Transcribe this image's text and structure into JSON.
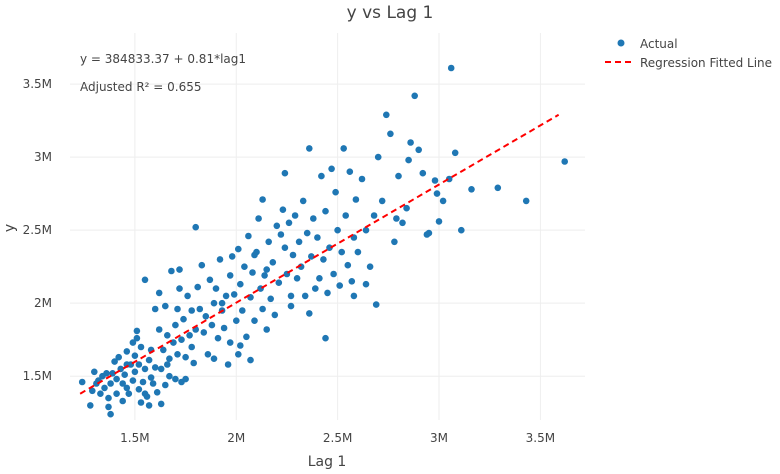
{
  "chart_data": {
    "type": "scatter",
    "title": "y vs Lag 1",
    "xlabel": "Lag 1",
    "ylabel": "y",
    "xlim": [
      1.18,
      3.72
    ],
    "ylim": [
      1.2,
      3.85
    ],
    "x_ticks": [
      {
        "value": 1.5,
        "label": "1.5M"
      },
      {
        "value": 2.0,
        "label": "2M"
      },
      {
        "value": 2.5,
        "label": "2.5M"
      },
      {
        "value": 3.0,
        "label": "3M"
      },
      {
        "value": 3.5,
        "label": "3.5M"
      }
    ],
    "y_ticks": [
      {
        "value": 1.5,
        "label": "1.5M"
      },
      {
        "value": 2.0,
        "label": "2M"
      },
      {
        "value": 2.5,
        "label": "2.5M"
      },
      {
        "value": 3.0,
        "label": "3M"
      },
      {
        "value": 3.5,
        "label": "3.5M"
      }
    ],
    "grid": true,
    "legend_position": "top-right",
    "annotations": [
      "y = 384833.37 + 0.81*lag1",
      "Adjusted R² = 0.655"
    ],
    "series": [
      {
        "name": "Actual",
        "mode": "markers",
        "color": "#1f77b4",
        "points": [
          [
            1.24,
            1.46
          ],
          [
            1.28,
            1.3
          ],
          [
            1.29,
            1.4
          ],
          [
            1.3,
            1.53
          ],
          [
            1.31,
            1.45
          ],
          [
            1.32,
            1.47
          ],
          [
            1.33,
            1.38
          ],
          [
            1.34,
            1.5
          ],
          [
            1.35,
            1.42
          ],
          [
            1.36,
            1.52
          ],
          [
            1.37,
            1.35
          ],
          [
            1.37,
            1.29
          ],
          [
            1.38,
            1.24
          ],
          [
            1.38,
            1.45
          ],
          [
            1.39,
            1.52
          ],
          [
            1.4,
            1.6
          ],
          [
            1.41,
            1.48
          ],
          [
            1.41,
            1.38
          ],
          [
            1.42,
            1.63
          ],
          [
            1.43,
            1.55
          ],
          [
            1.44,
            1.45
          ],
          [
            1.44,
            1.33
          ],
          [
            1.45,
            1.51
          ],
          [
            1.46,
            1.42
          ],
          [
            1.46,
            1.67
          ],
          [
            1.47,
            1.38
          ],
          [
            1.48,
            1.58
          ],
          [
            1.49,
            1.73
          ],
          [
            1.49,
            1.47
          ],
          [
            1.5,
            1.53
          ],
          [
            1.5,
            1.64
          ],
          [
            1.51,
            1.81
          ],
          [
            1.51,
            1.76
          ],
          [
            1.52,
            1.41
          ],
          [
            1.52,
            1.58
          ],
          [
            1.53,
            1.32
          ],
          [
            1.53,
            1.7
          ],
          [
            1.54,
            1.46
          ],
          [
            1.55,
            1.38
          ],
          [
            1.55,
            1.55
          ],
          [
            1.56,
            1.36
          ],
          [
            1.57,
            1.61
          ],
          [
            1.57,
            1.3
          ],
          [
            1.58,
            1.68
          ],
          [
            1.59,
            1.45
          ],
          [
            1.6,
            1.96
          ],
          [
            1.6,
            1.56
          ],
          [
            1.61,
            1.39
          ],
          [
            1.62,
            2.07
          ],
          [
            1.62,
            1.82
          ],
          [
            1.63,
            1.55
          ],
          [
            1.63,
            1.31
          ],
          [
            1.64,
            1.68
          ],
          [
            1.65,
            1.44
          ],
          [
            1.65,
            1.98
          ],
          [
            1.66,
            1.78
          ],
          [
            1.67,
            1.5
          ],
          [
            1.67,
            1.62
          ],
          [
            1.68,
            2.22
          ],
          [
            1.69,
            1.73
          ],
          [
            1.7,
            1.85
          ],
          [
            1.7,
            1.48
          ],
          [
            1.71,
            1.96
          ],
          [
            1.71,
            1.65
          ],
          [
            1.72,
            2.1
          ],
          [
            1.73,
            1.75
          ],
          [
            1.73,
            1.46
          ],
          [
            1.74,
            1.89
          ],
          [
            1.75,
            1.63
          ],
          [
            1.76,
            2.05
          ],
          [
            1.77,
            1.78
          ],
          [
            1.78,
            1.95
          ],
          [
            1.78,
            1.7
          ],
          [
            1.79,
            1.59
          ],
          [
            1.8,
            1.82
          ],
          [
            1.81,
            2.11
          ],
          [
            1.82,
            1.96
          ],
          [
            1.83,
            2.26
          ],
          [
            1.84,
            1.8
          ],
          [
            1.85,
            1.91
          ],
          [
            1.86,
            1.65
          ],
          [
            1.87,
            2.16
          ],
          [
            1.88,
            1.85
          ],
          [
            1.89,
            2.0
          ],
          [
            1.89,
            1.62
          ],
          [
            1.9,
            2.1
          ],
          [
            1.91,
            1.76
          ],
          [
            1.92,
            2.3
          ],
          [
            1.93,
            1.95
          ],
          [
            1.94,
            1.83
          ],
          [
            1.95,
            2.05
          ],
          [
            1.96,
            1.58
          ],
          [
            1.97,
            2.19
          ],
          [
            1.97,
            1.73
          ],
          [
            1.98,
            2.32
          ],
          [
            1.99,
            2.06
          ],
          [
            2.0,
            1.88
          ],
          [
            2.01,
            2.37
          ],
          [
            2.01,
            1.65
          ],
          [
            2.02,
            2.13
          ],
          [
            2.03,
            1.95
          ],
          [
            2.04,
            2.25
          ],
          [
            2.05,
            1.77
          ],
          [
            2.06,
            2.46
          ],
          [
            2.07,
            2.04
          ],
          [
            2.07,
            1.61
          ],
          [
            2.08,
            2.21
          ],
          [
            2.09,
            1.88
          ],
          [
            2.1,
            2.35
          ],
          [
            2.11,
            2.58
          ],
          [
            2.12,
            2.1
          ],
          [
            2.13,
            1.96
          ],
          [
            2.13,
            2.71
          ],
          [
            2.14,
            2.19
          ],
          [
            2.15,
            1.82
          ],
          [
            2.16,
            2.42
          ],
          [
            2.17,
            2.03
          ],
          [
            2.18,
            2.28
          ],
          [
            2.19,
            1.92
          ],
          [
            2.2,
            2.53
          ],
          [
            2.21,
            2.14
          ],
          [
            2.22,
            2.47
          ],
          [
            2.23,
            2.64
          ],
          [
            2.24,
            2.38
          ],
          [
            2.25,
            2.2
          ],
          [
            2.26,
            2.55
          ],
          [
            2.27,
            2.05
          ],
          [
            2.28,
            2.33
          ],
          [
            2.29,
            2.6
          ],
          [
            2.3,
            2.17
          ],
          [
            2.31,
            2.42
          ],
          [
            2.32,
            2.25
          ],
          [
            2.33,
            2.7
          ],
          [
            2.34,
            2.05
          ],
          [
            2.35,
            2.48
          ],
          [
            2.36,
            1.93
          ],
          [
            2.37,
            2.32
          ],
          [
            2.38,
            2.58
          ],
          [
            2.39,
            2.1
          ],
          [
            2.4,
            2.45
          ],
          [
            2.41,
            2.17
          ],
          [
            2.42,
            2.87
          ],
          [
            2.43,
            2.3
          ],
          [
            2.44,
            2.63
          ],
          [
            2.45,
            2.07
          ],
          [
            2.46,
            2.38
          ],
          [
            2.47,
            2.92
          ],
          [
            2.48,
            2.2
          ],
          [
            2.49,
            2.76
          ],
          [
            2.5,
            2.5
          ],
          [
            2.51,
            2.12
          ],
          [
            2.52,
            2.35
          ],
          [
            2.53,
            3.06
          ],
          [
            2.54,
            2.6
          ],
          [
            2.55,
            2.26
          ],
          [
            2.56,
            2.9
          ],
          [
            2.57,
            2.15
          ],
          [
            2.58,
            2.45
          ],
          [
            2.59,
            2.71
          ],
          [
            2.6,
            2.35
          ],
          [
            2.62,
            2.85
          ],
          [
            2.64,
            2.5
          ],
          [
            2.66,
            2.25
          ],
          [
            2.68,
            2.6
          ],
          [
            2.7,
            3.0
          ],
          [
            2.72,
            2.7
          ],
          [
            2.74,
            3.29
          ],
          [
            2.76,
            3.16
          ],
          [
            2.78,
            2.42
          ],
          [
            2.8,
            2.87
          ],
          [
            2.82,
            2.55
          ],
          [
            2.84,
            2.65
          ],
          [
            2.86,
            3.1
          ],
          [
            2.88,
            3.42
          ],
          [
            2.9,
            3.05
          ],
          [
            2.92,
            2.89
          ],
          [
            2.95,
            2.48
          ],
          [
            2.98,
            2.84
          ],
          [
            3.0,
            2.56
          ],
          [
            3.02,
            2.7
          ],
          [
            3.05,
            2.85
          ],
          [
            3.06,
            3.61
          ],
          [
            3.08,
            3.03
          ],
          [
            3.11,
            2.5
          ],
          [
            3.16,
            2.78
          ],
          [
            3.29,
            2.79
          ],
          [
            3.43,
            2.7
          ],
          [
            3.62,
            2.97
          ],
          [
            1.58,
            1.49
          ],
          [
            1.66,
            1.58
          ],
          [
            1.75,
            1.48
          ],
          [
            1.93,
            2.0
          ],
          [
            2.02,
            1.71
          ],
          [
            2.15,
            2.23
          ],
          [
            2.27,
            1.98
          ],
          [
            2.44,
            1.76
          ],
          [
            2.58,
            2.05
          ],
          [
            2.69,
            1.99
          ],
          [
            2.79,
            2.58
          ],
          [
            2.94,
            2.47
          ],
          [
            1.55,
            2.16
          ],
          [
            1.72,
            2.23
          ],
          [
            1.8,
            2.52
          ],
          [
            2.09,
            2.33
          ],
          [
            2.24,
            2.89
          ],
          [
            2.36,
            3.06
          ],
          [
            2.64,
            2.13
          ],
          [
            2.85,
            2.98
          ],
          [
            2.99,
            2.75
          ],
          [
            1.46,
            1.58
          ]
        ]
      },
      {
        "name": "Regression Fitted Line",
        "mode": "lines",
        "dash": "dash",
        "color": "#ff0000",
        "points": [
          [
            1.23,
            1.38
          ],
          [
            3.59,
            3.29
          ]
        ]
      }
    ]
  }
}
